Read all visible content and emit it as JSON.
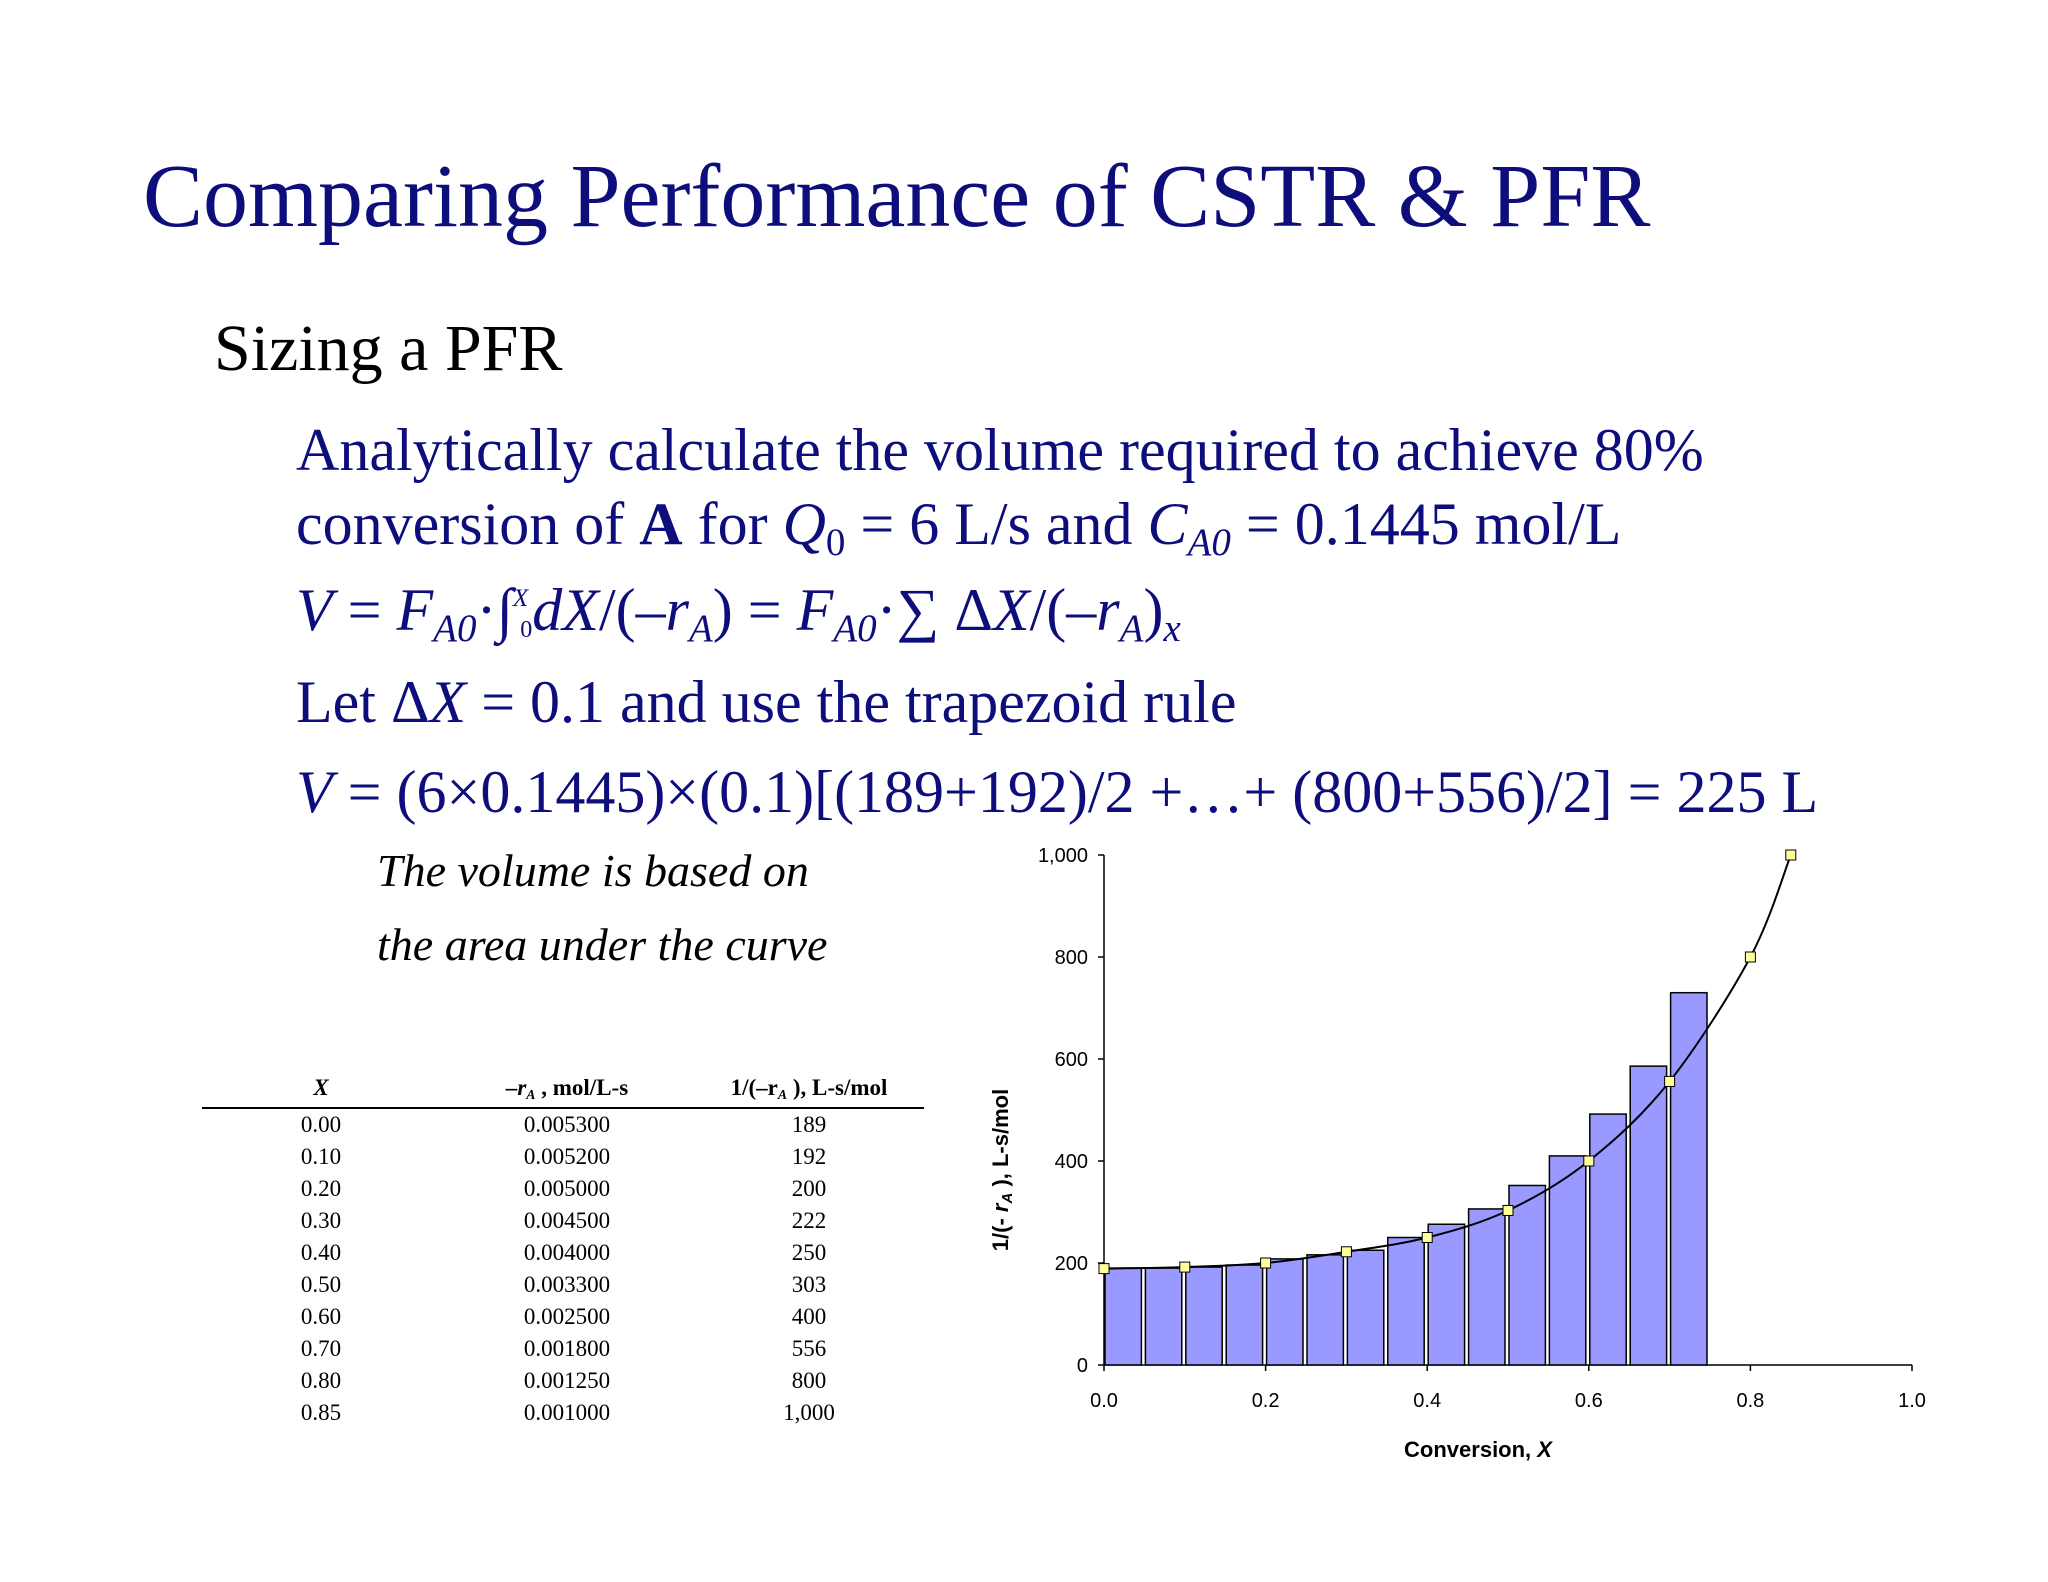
{
  "slide": {
    "title": "Comparing Performance of CSTR & PFR",
    "subtitle": "Sizing a PFR",
    "line1": "Analytically calculate the volume required to achieve 80%",
    "line2": {
      "a": "conversion of ",
      "b": "A",
      "c": " for ",
      "d": "Q",
      "e": "0",
      "f": " = 6 L/s and ",
      "g": "C",
      "h": "A0",
      "i": " = 0.1445 mol/L"
    },
    "eq1": {
      "v": "V",
      "eq": " = ",
      "f": "F",
      "a0": "A0",
      "dot": "·∫",
      "lim_lo": "0",
      "lim_hi": "X",
      "dx": "dX",
      "slash": "/(–",
      "r": "r",
      "a": "A",
      "close": ") = ",
      "f2": "F",
      "a02": "A0",
      "sum": "·∑ Δ",
      "x": "X",
      "slash2": "/(–",
      "r2": "r",
      "a2": "A",
      "close2": ")",
      "xsub": "x"
    },
    "line4": {
      "a": "Let Δ",
      "b": "X",
      "c": " = 0.1 and use the trapezoid rule"
    },
    "eq2": {
      "v": "V",
      "rest": " = (6×0.1445)×(0.1)[(189+192)/2 +…+ (800+556)/2] = 225 L"
    },
    "note1": "The volume is based on",
    "note2": "the area under the curve"
  },
  "table": {
    "headers": {
      "x": "X",
      "ra_pre": "–r",
      "ra_sub": "A",
      "ra_post": " , mol/L-s",
      "inv_pre": "1/(–r",
      "inv_sub": "A",
      "inv_post": " ), L-s/mol"
    },
    "rows": [
      [
        "0.00",
        "0.005300",
        "189"
      ],
      [
        "0.10",
        "0.005200",
        "192"
      ],
      [
        "0.20",
        "0.005000",
        "200"
      ],
      [
        "0.30",
        "0.004500",
        "222"
      ],
      [
        "0.40",
        "0.004000",
        "250"
      ],
      [
        "0.50",
        "0.003300",
        "303"
      ],
      [
        "0.60",
        "0.002500",
        "400"
      ],
      [
        "0.70",
        "0.001800",
        "556"
      ],
      [
        "0.80",
        "0.001250",
        "800"
      ],
      [
        "0.85",
        "0.001000",
        "1,000"
      ]
    ]
  },
  "chart_data": {
    "type": "bar",
    "xlabel_text": "Conversion, ",
    "xlabel_var": "X",
    "ylabel_pre": "1/(- ",
    "ylabel_var": "r",
    "ylabel_sub": "A",
    "ylabel_post": " ), L-s/mol",
    "xlim": [
      0,
      1.0
    ],
    "ylim": [
      0,
      1000
    ],
    "x_ticks": [
      "0.0",
      "0.2",
      "0.4",
      "0.6",
      "0.8",
      "1.0"
    ],
    "y_ticks": [
      "0",
      "200",
      "400",
      "600",
      "800",
      "1,000"
    ],
    "x_tick_values": [
      0,
      0.2,
      0.4,
      0.6,
      0.8,
      1.0
    ],
    "y_tick_values": [
      0,
      200,
      400,
      600,
      800,
      1000
    ],
    "bar_width_x": 0.05,
    "bars": {
      "x_start": [
        0.0,
        0.05,
        0.1,
        0.15,
        0.2,
        0.25,
        0.3,
        0.35,
        0.4,
        0.45,
        0.5,
        0.55,
        0.6,
        0.65,
        0.7,
        0.75
      ],
      "values": [
        190,
        190,
        192,
        196,
        208,
        216,
        225,
        250,
        276,
        306,
        352,
        410,
        492,
        586,
        730,
        0
      ]
    },
    "points": {
      "x": [
        0.0,
        0.1,
        0.2,
        0.3,
        0.4,
        0.5,
        0.6,
        0.7,
        0.8,
        0.85
      ],
      "y": [
        189,
        192,
        200,
        222,
        250,
        303,
        400,
        556,
        800,
        1000
      ]
    },
    "colors": {
      "bar_fill": "#9999ff",
      "bar_stroke": "#000000",
      "marker_fill": "#ffff99",
      "curve": "#000000"
    }
  }
}
